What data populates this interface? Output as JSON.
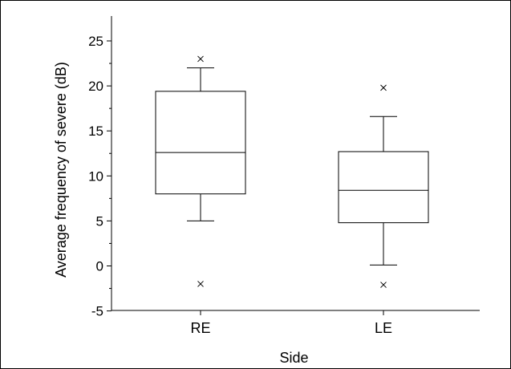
{
  "chart_data": {
    "type": "boxplot",
    "title": "",
    "xlabel": "Side",
    "ylabel": "Average frequency of severe (dB)",
    "ylim": [
      -5,
      27
    ],
    "yticks": [
      -5,
      0,
      5,
      10,
      15,
      20,
      25
    ],
    "grid": false,
    "categories": [
      "RE",
      "LE"
    ],
    "boxes": [
      {
        "category": "RE",
        "whisker_low": 5.0,
        "q1": 8.0,
        "median": 12.6,
        "q3": 19.4,
        "whisker_high": 22.0,
        "outliers": [
          23.0,
          -2.0
        ]
      },
      {
        "category": "LE",
        "whisker_low": 0.1,
        "q1": 4.8,
        "median": 8.4,
        "q3": 12.7,
        "whisker_high": 16.6,
        "outliers": [
          19.8,
          -2.1
        ]
      }
    ],
    "outlier_marker": "x"
  }
}
